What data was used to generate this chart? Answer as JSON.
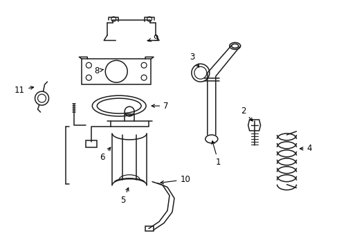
{
  "bg_color": "#ffffff",
  "line_color": "#1a1a1a",
  "fig_width": 4.9,
  "fig_height": 3.6,
  "dpi": 100,
  "label_fontsize": 8.5,
  "lw": 1.1
}
